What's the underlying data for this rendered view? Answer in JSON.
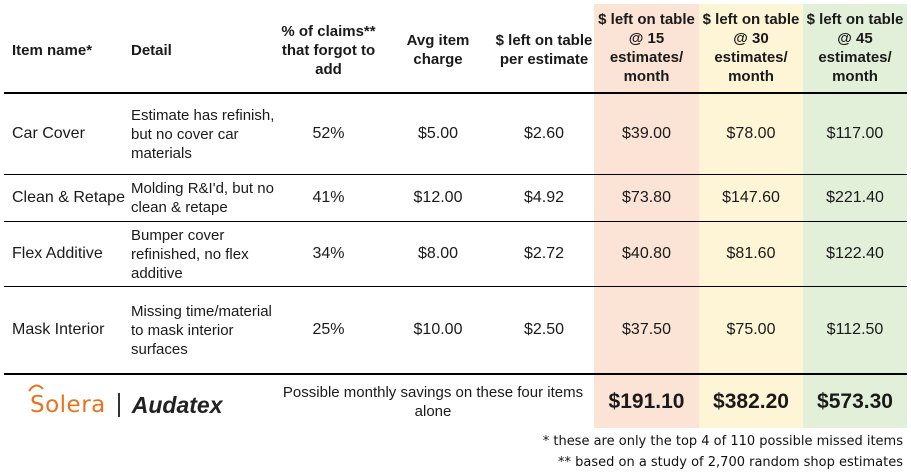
{
  "headers": {
    "item_name": "Item name*",
    "detail": "Detail",
    "pct_claims": "% of claims** that forgot to add",
    "avg_charge": "Avg item charge",
    "left_per_estimate": "$ left on table per estimate",
    "left_15": "$ left on table @ 15 estimates/ month",
    "left_30": "$ left on table @ 30 estimates/ month",
    "left_45": "$ left on table @ 45 estimates/ month"
  },
  "rows": [
    {
      "item": "Car Cover",
      "detail": "Estimate has refinish, but no cover car materials",
      "pct": "52%",
      "avg": "$5.00",
      "per_est": "$2.60",
      "m15": "$39.00",
      "m30": "$78.00",
      "m45": "$117.00"
    },
    {
      "item": "Clean & Retape",
      "detail": "Molding R&I'd, but no clean & retape",
      "pct": "41%",
      "avg": "$12.00",
      "per_est": "$4.92",
      "m15": "$73.80",
      "m30": "$147.60",
      "m45": "$221.40"
    },
    {
      "item": "Flex Additive",
      "detail": "Bumper cover refinished, no flex additive",
      "pct": "34%",
      "avg": "$8.00",
      "per_est": "$2.72",
      "m15": "$40.80",
      "m30": "$81.60",
      "m45": "$122.40"
    },
    {
      "item": "Mask Interior",
      "detail": "Missing time/material to mask interior surfaces",
      "pct": "25%",
      "avg": "$10.00",
      "per_est": "$2.50",
      "m15": "$37.50",
      "m30": "$75.00",
      "m45": "$112.50"
    }
  ],
  "totals": {
    "label": "Possible monthly savings on these four items alone",
    "m15": "$191.10",
    "m30": "$382.20",
    "m45": "$573.30"
  },
  "logo": {
    "solera": "Solera",
    "audatex": "Audatex",
    "solera_color": "#e8731f"
  },
  "footnotes": [
    "* these are only the top 4 of 110 possible missed items",
    "** based on a study of 2,700 random shop estimates"
  ],
  "colors": {
    "col15": "#fbe3d6",
    "col30": "#fef5d6",
    "col45": "#e2efd9"
  }
}
